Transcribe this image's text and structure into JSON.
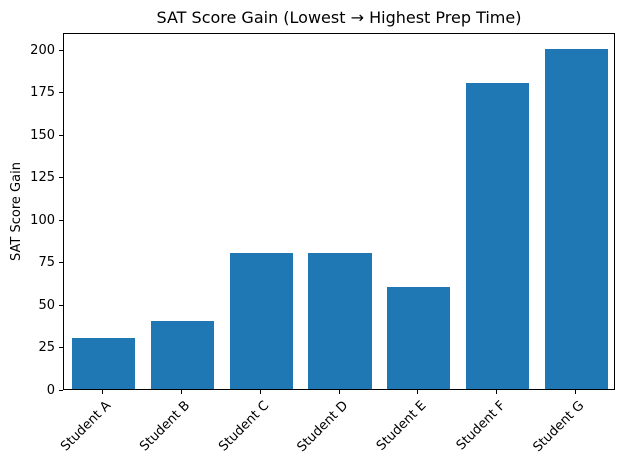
{
  "chart_data": {
    "type": "bar",
    "title": "SAT Score Gain (Lowest → Highest Prep Time)",
    "ylabel": "SAT Score Gain",
    "xlabel": "",
    "categories": [
      "Student A",
      "Student B",
      "Student C",
      "Student D",
      "Student E",
      "Student F",
      "Student G"
    ],
    "values": [
      30,
      40,
      80,
      80,
      60,
      180,
      200
    ],
    "yticks": [
      0,
      25,
      50,
      75,
      100,
      125,
      150,
      175,
      200
    ],
    "ylim": [
      0,
      210
    ],
    "bar_color": "#1f77b4",
    "bar_width_fraction": 0.8,
    "grid": false,
    "legend_position": "none"
  }
}
